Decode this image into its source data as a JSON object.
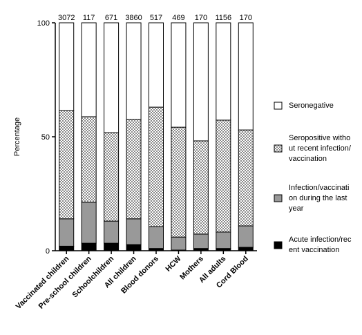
{
  "chart_data": {
    "type": "stacked_bar",
    "y_label": "Percentage",
    "categories": [
      "Vaccinated children",
      "Pre-school children",
      "Schoolchildren",
      "All children",
      "Blood donors",
      "HCW",
      "Mothers",
      "All adults",
      "Cord Blood"
    ],
    "sample_sizes": [
      3072,
      117,
      671,
      3860,
      517,
      469,
      170,
      1156,
      170
    ],
    "series": [
      {
        "name": "Acute infection/recent vaccination",
        "color": "#000000",
        "values": [
          2,
          3.3,
          3.3,
          2.7,
          1,
          0.3,
          1,
          1,
          1.5
        ]
      },
      {
        "name": "Infection/vaccination during the last year",
        "color": "#999999",
        "values": [
          12,
          18,
          9.7,
          11.3,
          9.6,
          5.7,
          6.3,
          7.2,
          9.4
        ]
      },
      {
        "name": "Seropositive without recent infection/vaccination",
        "color": "#aaaaaa",
        "pattern": "checker",
        "values": [
          47.5,
          37.5,
          38.8,
          43.6,
          52.4,
          48.2,
          40.9,
          49.1,
          42.1
        ]
      },
      {
        "name": "Seronegative",
        "color": "#ffffff",
        "values": [
          38.5,
          41.2,
          48.2,
          42.4,
          37,
          45.8,
          51.8,
          42.7,
          47
        ]
      }
    ],
    "ylim": [
      0,
      100
    ],
    "yticks": [
      0,
      50,
      100
    ]
  }
}
